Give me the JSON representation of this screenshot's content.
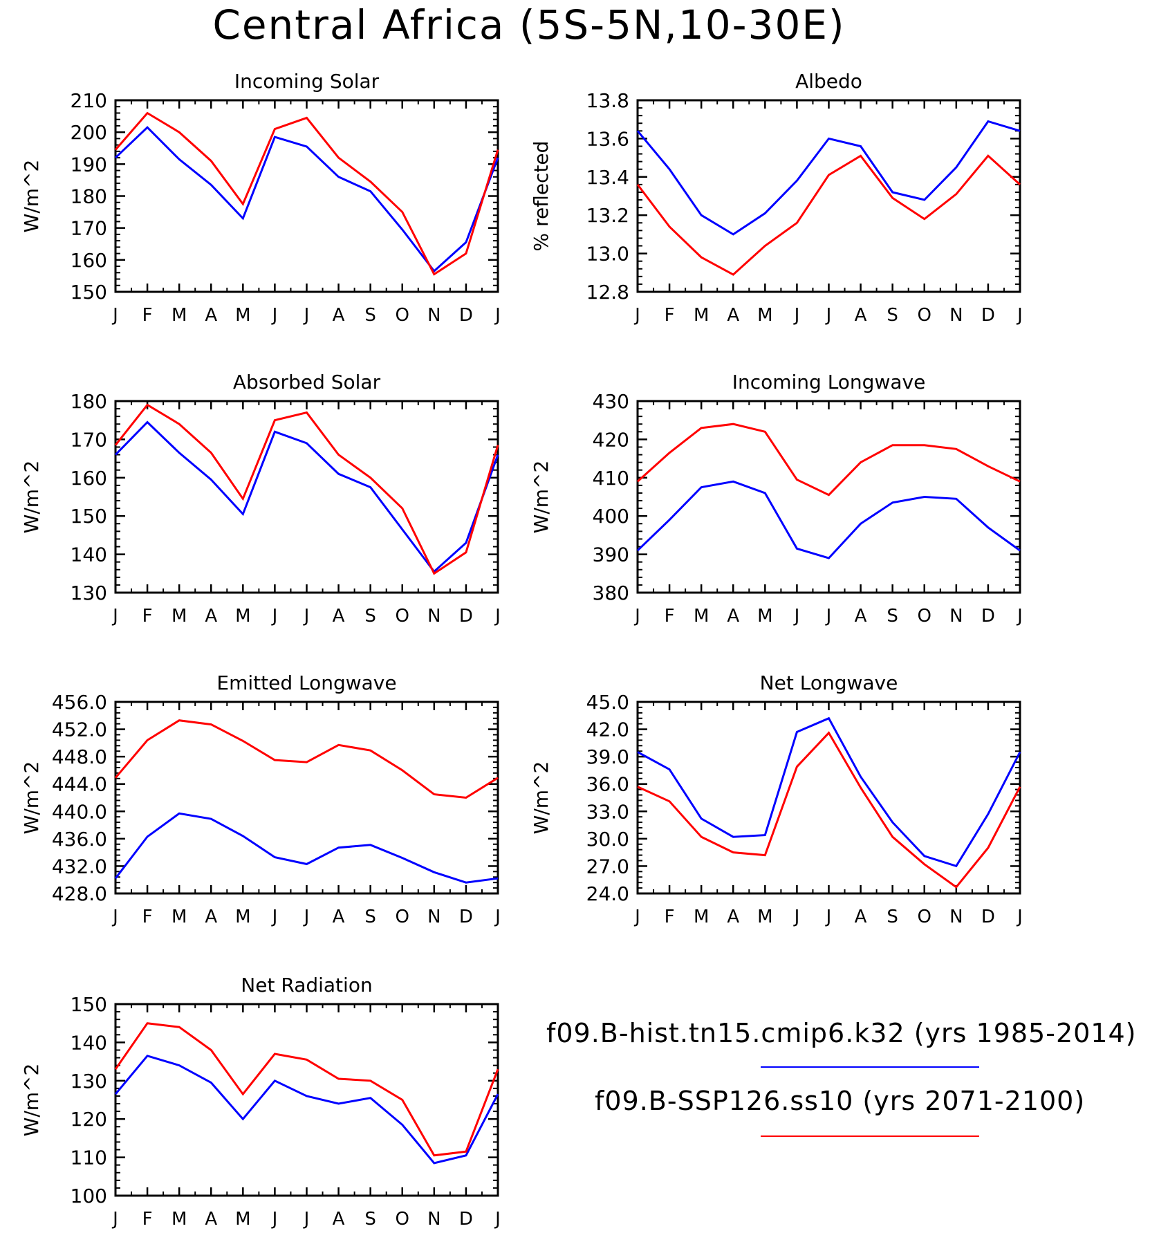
{
  "title": "Central Africa (5S-5N,10-30E)",
  "colors": {
    "hist": "#0000ff",
    "ssp": "#ff0000",
    "axis": "#000000"
  },
  "legend": {
    "hist_label": "f09.B-hist.tn15.cmip6.k32 (yrs 1985-2014)",
    "ssp_label": "f09.B-SSP126.ss10 (yrs 2071-2100)"
  },
  "chart_data": [
    {
      "type": "line",
      "title": "Incoming Solar",
      "ylabel": "W/m^2",
      "categories": [
        "J",
        "F",
        "M",
        "A",
        "M",
        "J",
        "J",
        "A",
        "S",
        "O",
        "N",
        "D",
        "J"
      ],
      "ylim": [
        150,
        210
      ],
      "yticks": [
        "150",
        "160",
        "170",
        "180",
        "190",
        "200",
        "210"
      ],
      "series": [
        {
          "key": "hist",
          "values": [
            192,
            201.5,
            191.5,
            183.5,
            173,
            198.5,
            195.5,
            186,
            181.5,
            169.5,
            156.5,
            165.5,
            192
          ]
        },
        {
          "key": "ssp",
          "values": [
            194.5,
            206,
            200,
            191,
            177.5,
            201,
            204.5,
            192,
            184.5,
            175,
            155.5,
            162,
            194.5
          ]
        }
      ]
    },
    {
      "type": "line",
      "title": "Albedo",
      "ylabel": "% reflected",
      "categories": [
        "J",
        "F",
        "M",
        "A",
        "M",
        "J",
        "J",
        "A",
        "S",
        "O",
        "N",
        "D",
        "J"
      ],
      "ylim": [
        12.8,
        13.8
      ],
      "yticks": [
        "12.8",
        "13.0",
        "13.2",
        "13.4",
        "13.6",
        "13.8"
      ],
      "series": [
        {
          "key": "hist",
          "values": [
            13.64,
            13.44,
            13.2,
            13.1,
            13.21,
            13.38,
            13.6,
            13.56,
            13.32,
            13.28,
            13.45,
            13.69,
            13.64
          ]
        },
        {
          "key": "ssp",
          "values": [
            13.36,
            13.14,
            12.98,
            12.89,
            13.04,
            13.16,
            13.41,
            13.51,
            13.29,
            13.18,
            13.31,
            13.51,
            13.36
          ]
        }
      ]
    },
    {
      "type": "line",
      "title": "Absorbed Solar",
      "ylabel": "W/m^2",
      "categories": [
        "J",
        "F",
        "M",
        "A",
        "M",
        "J",
        "J",
        "A",
        "S",
        "O",
        "N",
        "D",
        "J"
      ],
      "ylim": [
        130,
        180
      ],
      "yticks": [
        "130",
        "140",
        "150",
        "160",
        "170",
        "180"
      ],
      "series": [
        {
          "key": "hist",
          "values": [
            166,
            174.5,
            166.5,
            159.5,
            150.5,
            172,
            169,
            161,
            157.5,
            146.5,
            135.5,
            143,
            166
          ]
        },
        {
          "key": "ssp",
          "values": [
            168.5,
            179,
            174,
            166.5,
            154.5,
            175,
            177,
            166,
            160,
            152,
            135,
            140.5,
            168.5
          ]
        }
      ]
    },
    {
      "type": "line",
      "title": "Incoming Longwave",
      "ylabel": "W/m^2",
      "categories": [
        "J",
        "F",
        "M",
        "A",
        "M",
        "J",
        "J",
        "A",
        "S",
        "O",
        "N",
        "D",
        "J"
      ],
      "ylim": [
        380,
        430
      ],
      "yticks": [
        "380",
        "390",
        "400",
        "410",
        "420",
        "430"
      ],
      "series": [
        {
          "key": "hist",
          "values": [
            391,
            399,
            407.5,
            409,
            406,
            391.5,
            389,
            398,
            403.5,
            405,
            404.5,
            397,
            391
          ]
        },
        {
          "key": "ssp",
          "values": [
            409,
            416.5,
            423,
            424,
            422,
            409.5,
            405.5,
            414,
            418.5,
            418.5,
            417.5,
            413,
            409
          ]
        }
      ]
    },
    {
      "type": "line",
      "title": "Emitted Longwave",
      "ylabel": "W/m^2",
      "categories": [
        "J",
        "F",
        "M",
        "A",
        "M",
        "J",
        "J",
        "A",
        "S",
        "O",
        "N",
        "D",
        "J"
      ],
      "ylim": [
        428,
        456
      ],
      "yticks": [
        "428.0",
        "432.0",
        "436.0",
        "440.0",
        "444.0",
        "448.0",
        "452.0",
        "456.0"
      ],
      "series": [
        {
          "key": "hist",
          "values": [
            430.2,
            436.3,
            439.7,
            438.9,
            436.4,
            433.3,
            432.3,
            434.7,
            435.1,
            433.2,
            431.1,
            429.6,
            430.2
          ]
        },
        {
          "key": "ssp",
          "values": [
            444.9,
            450.4,
            453.3,
            452.7,
            450.3,
            447.5,
            447.2,
            449.7,
            448.9,
            446.0,
            442.5,
            442.0,
            444.9
          ]
        }
      ]
    },
    {
      "type": "line",
      "title": "Net Longwave",
      "ylabel": "W/m^2",
      "categories": [
        "J",
        "F",
        "M",
        "A",
        "M",
        "J",
        "J",
        "A",
        "S",
        "O",
        "N",
        "D",
        "J"
      ],
      "ylim": [
        24,
        45
      ],
      "yticks": [
        "24.0",
        "27.0",
        "30.0",
        "33.0",
        "36.0",
        "39.0",
        "42.0",
        "45.0"
      ],
      "series": [
        {
          "key": "hist",
          "values": [
            39.5,
            37.6,
            32.2,
            30.2,
            30.4,
            41.7,
            43.2,
            36.8,
            31.8,
            28.1,
            27.0,
            32.7,
            39.5
          ]
        },
        {
          "key": "ssp",
          "values": [
            35.7,
            34.1,
            30.2,
            28.5,
            28.2,
            37.9,
            41.6,
            35.6,
            30.2,
            27.2,
            24.7,
            29.0,
            35.7
          ]
        }
      ]
    },
    {
      "type": "line",
      "title": "Net Radiation",
      "ylabel": "W/m^2",
      "categories": [
        "J",
        "F",
        "M",
        "A",
        "M",
        "J",
        "J",
        "A",
        "S",
        "O",
        "N",
        "D",
        "J"
      ],
      "ylim": [
        100,
        150
      ],
      "yticks": [
        "100",
        "110",
        "120",
        "130",
        "140",
        "150"
      ],
      "series": [
        {
          "key": "hist",
          "values": [
            126.5,
            136.5,
            134,
            129.5,
            120,
            130,
            126,
            124,
            125.5,
            118.5,
            108.5,
            110.5,
            126.5
          ]
        },
        {
          "key": "ssp",
          "values": [
            133,
            145,
            144,
            138,
            126.5,
            137,
            135.5,
            130.5,
            130,
            125,
            110.5,
            111.5,
            133
          ]
        }
      ]
    }
  ]
}
